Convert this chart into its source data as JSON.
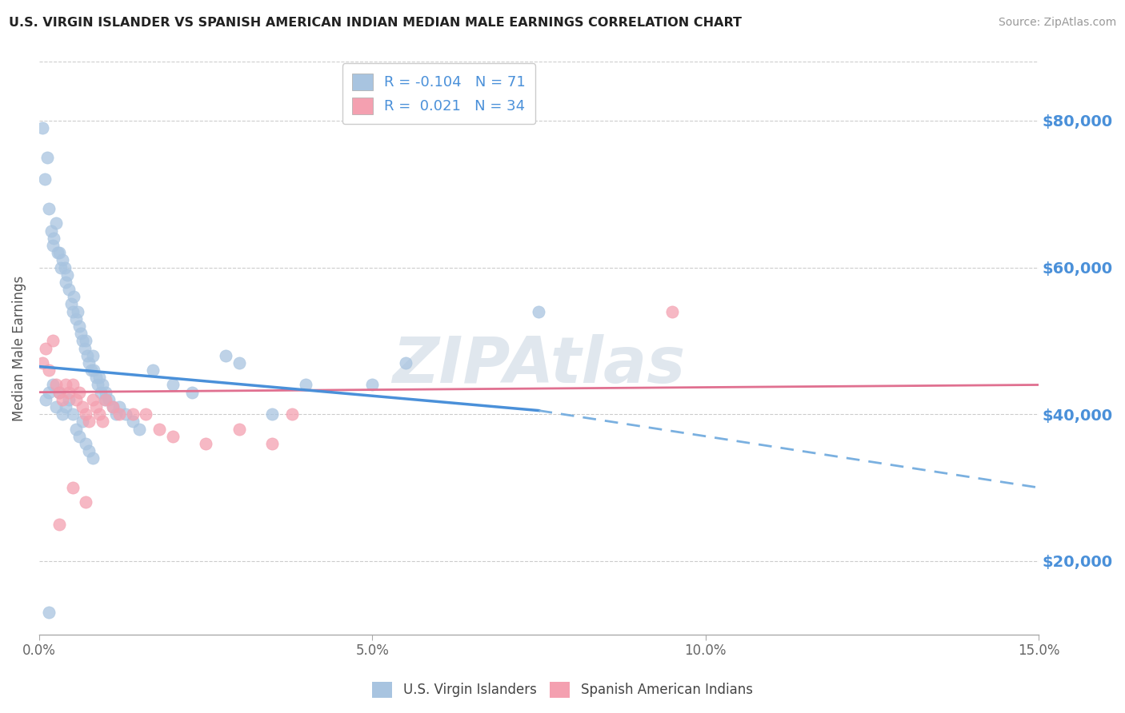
{
  "title": "U.S. VIRGIN ISLANDER VS SPANISH AMERICAN INDIAN MEDIAN MALE EARNINGS CORRELATION CHART",
  "source": "Source: ZipAtlas.com",
  "ylabel": "Median Male Earnings",
  "xlabel_ticks": [
    "0.0%",
    "5.0%",
    "10.0%",
    "15.0%"
  ],
  "xlabel_vals": [
    0.0,
    5.0,
    10.0,
    15.0
  ],
  "ytick_vals": [
    20000,
    40000,
    60000,
    80000
  ],
  "ytick_labels": [
    "$20,000",
    "$40,000",
    "$60,000",
    "$80,000"
  ],
  "xlim": [
    0.0,
    15.0
  ],
  "ylim": [
    10000,
    88000
  ],
  "blue_scatter_color": "#a8c4e0",
  "pink_scatter_color": "#f4a0b0",
  "blue_line_color": "#4a90d9",
  "pink_line_color": "#e07090",
  "dashed_line_color": "#7ab0e0",
  "legend_line1_r": "R = -0.104",
  "legend_line1_n": "N = 71",
  "legend_line2_r": "R =  0.021",
  "legend_line2_n": "N = 34",
  "legend_label1": "U.S. Virgin Islanders",
  "legend_label2": "Spanish American Indians",
  "watermark": "ZIPAtlas",
  "blue_line_x0": 0.0,
  "blue_line_y0": 46500,
  "blue_line_x1": 7.5,
  "blue_line_y1": 40500,
  "blue_dash_x0": 7.5,
  "blue_dash_y0": 40500,
  "blue_dash_x1": 15.0,
  "blue_dash_y1": 30000,
  "pink_line_x0": 0.0,
  "pink_line_y0": 43000,
  "pink_line_x1": 15.0,
  "pink_line_y1": 44000,
  "blue_x": [
    0.05,
    0.08,
    0.12,
    0.15,
    0.18,
    0.2,
    0.22,
    0.25,
    0.28,
    0.3,
    0.32,
    0.35,
    0.38,
    0.4,
    0.42,
    0.45,
    0.48,
    0.5,
    0.52,
    0.55,
    0.58,
    0.6,
    0.62,
    0.65,
    0.68,
    0.7,
    0.72,
    0.75,
    0.78,
    0.8,
    0.82,
    0.85,
    0.88,
    0.9,
    0.92,
    0.95,
    0.98,
    1.0,
    1.05,
    1.1,
    1.15,
    1.2,
    1.3,
    1.4,
    1.5,
    1.7,
    2.0,
    2.3,
    2.8,
    3.0,
    3.5,
    4.0,
    5.0,
    5.5,
    7.5,
    0.1,
    0.15,
    0.2,
    0.25,
    0.3,
    0.35,
    0.4,
    0.45,
    0.5,
    0.55,
    0.6,
    0.65,
    0.7,
    0.75,
    0.8,
    0.15
  ],
  "blue_y": [
    79000,
    72000,
    75000,
    68000,
    65000,
    63000,
    64000,
    66000,
    62000,
    62000,
    60000,
    61000,
    60000,
    58000,
    59000,
    57000,
    55000,
    54000,
    56000,
    53000,
    54000,
    52000,
    51000,
    50000,
    49000,
    50000,
    48000,
    47000,
    46000,
    48000,
    46000,
    45000,
    44000,
    45000,
    43000,
    44000,
    42000,
    43000,
    42000,
    41000,
    40000,
    41000,
    40000,
    39000,
    38000,
    46000,
    44000,
    43000,
    48000,
    47000,
    40000,
    44000,
    44000,
    47000,
    54000,
    42000,
    43000,
    44000,
    41000,
    43000,
    40000,
    41000,
    42000,
    40000,
    38000,
    37000,
    39000,
    36000,
    35000,
    34000,
    13000
  ],
  "pink_x": [
    0.05,
    0.1,
    0.15,
    0.2,
    0.25,
    0.3,
    0.35,
    0.4,
    0.45,
    0.5,
    0.55,
    0.6,
    0.65,
    0.7,
    0.75,
    0.8,
    0.85,
    0.9,
    0.95,
    1.0,
    1.1,
    1.2,
    1.4,
    1.6,
    1.8,
    2.0,
    2.5,
    3.0,
    3.5,
    3.8,
    0.3,
    0.5,
    0.7,
    9.5
  ],
  "pink_y": [
    47000,
    49000,
    46000,
    50000,
    44000,
    43000,
    42000,
    44000,
    43000,
    44000,
    42000,
    43000,
    41000,
    40000,
    39000,
    42000,
    41000,
    40000,
    39000,
    42000,
    41000,
    40000,
    40000,
    40000,
    38000,
    37000,
    36000,
    38000,
    36000,
    40000,
    25000,
    30000,
    28000,
    54000
  ]
}
